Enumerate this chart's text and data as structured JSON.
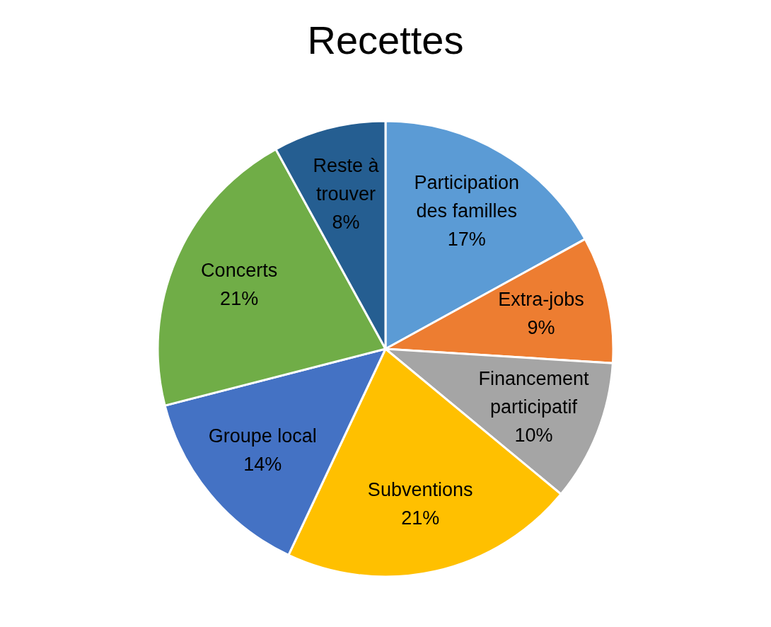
{
  "chart_data": {
    "type": "pie",
    "title": "Recettes",
    "categories": [
      "Participation des familles",
      "Extra-jobs",
      "Financement participatif",
      "Subventions",
      "Groupe local",
      "Concerts",
      "Reste à trouver"
    ],
    "values": [
      17,
      9,
      10,
      21,
      14,
      21,
      8
    ],
    "colors": [
      "#5b9bd5",
      "#ed7d31",
      "#a5a5a5",
      "#ffc000",
      "#4472c4",
      "#70ad47",
      "#255e91"
    ],
    "value_labels": [
      "17%",
      "9%",
      "10%",
      "21%",
      "14%",
      "21%",
      "8%"
    ]
  }
}
